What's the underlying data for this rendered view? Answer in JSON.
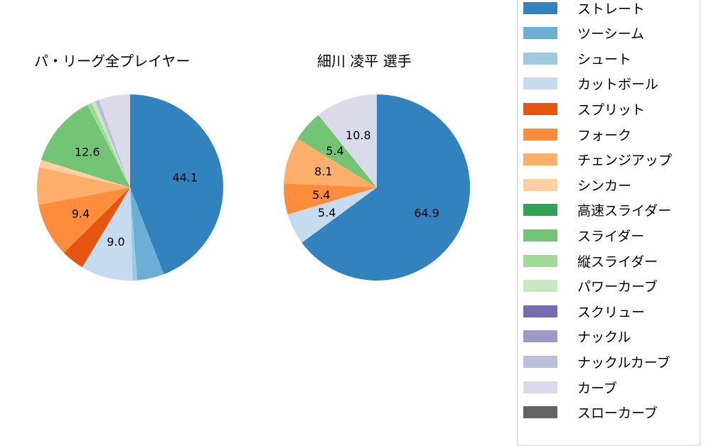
{
  "chart_data": [
    {
      "type": "pie",
      "title": "パ・リーグ全プレイヤー",
      "categories": [
        "ストレート",
        "ツーシーム",
        "シュート",
        "カットボール",
        "スプリット",
        "フォーク",
        "チェンジアップ",
        "シンカー",
        "スライダー",
        "縦スライダー",
        "パワーカーブ",
        "ナックルカーブ",
        "カーブ"
      ],
      "values": [
        44.1,
        4.7,
        0.8,
        9.0,
        4.0,
        9.4,
        6.5,
        1.3,
        12.6,
        0.8,
        0.7,
        0.7,
        5.4
      ],
      "colors": [
        "#3182bd",
        "#6baed6",
        "#9ecae1",
        "#c6dbef",
        "#e6550d",
        "#fd8d3c",
        "#fdae6b",
        "#fdd0a2",
        "#74c476",
        "#a1d99b",
        "#c7e9c0",
        "#bcbddc",
        "#dadaeb"
      ],
      "shown_labels": {
        "ストレート": "44.1",
        "カットボール": "9.0",
        "フォーク": "9.4",
        "スライダー": "12.6"
      },
      "start_angle": 90,
      "direction": "clockwise"
    },
    {
      "type": "pie",
      "title": "細川 凌平  選手",
      "categories": [
        "ストレート",
        "カットボール",
        "フォーク",
        "チェンジアップ",
        "スライダー",
        "カーブ"
      ],
      "values": [
        64.9,
        5.4,
        5.4,
        8.1,
        5.4,
        10.8
      ],
      "colors": [
        "#3182bd",
        "#c6dbef",
        "#fd8d3c",
        "#fdae6b",
        "#74c476",
        "#dadaeb"
      ],
      "shown_labels": {
        "ストレート": "64.9",
        "カットボール": "5.4",
        "フォーク": "5.4",
        "チェンジアップ": "8.1",
        "スライダー": "5.4",
        "カーブ": "10.8"
      },
      "start_angle": 90,
      "direction": "clockwise"
    }
  ],
  "titles": {
    "left": "パ・リーグ全プレイヤー",
    "right": "細川 凌平  選手"
  },
  "legend": [
    {
      "label": "ストレート",
      "color": "#3182bd"
    },
    {
      "label": "ツーシーム",
      "color": "#6baed6"
    },
    {
      "label": "シュート",
      "color": "#9ecae1"
    },
    {
      "label": "カットボール",
      "color": "#c6dbef"
    },
    {
      "label": "スプリット",
      "color": "#e6550d"
    },
    {
      "label": "フォーク",
      "color": "#fd8d3c"
    },
    {
      "label": "チェンジアップ",
      "color": "#fdae6b"
    },
    {
      "label": "シンカー",
      "color": "#fdd0a2"
    },
    {
      "label": "高速スライダー",
      "color": "#31a354"
    },
    {
      "label": "スライダー",
      "color": "#74c476"
    },
    {
      "label": "縦スライダー",
      "color": "#a1d99b"
    },
    {
      "label": "パワーカーブ",
      "color": "#c7e9c0"
    },
    {
      "label": "スクリュー",
      "color": "#756bb1"
    },
    {
      "label": "ナックル",
      "color": "#9e9ac8"
    },
    {
      "label": "ナックルカーブ",
      "color": "#bcbddc"
    },
    {
      "label": "カーブ",
      "color": "#dadaeb"
    },
    {
      "label": "スローカーブ",
      "color": "#636363"
    }
  ]
}
